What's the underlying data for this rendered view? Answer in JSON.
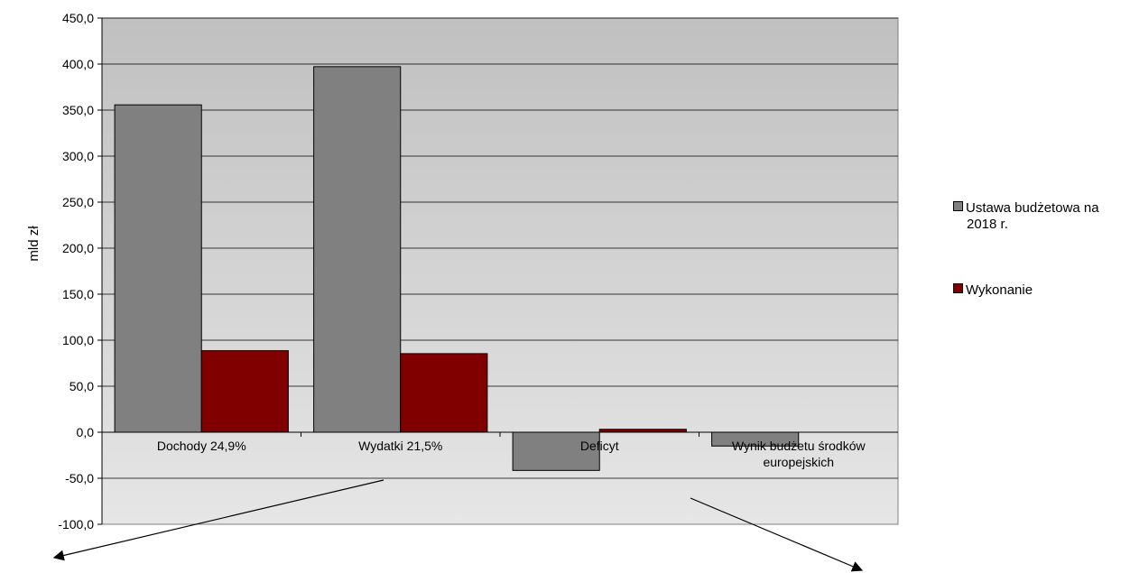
{
  "chart_data": {
    "type": "bar",
    "ylabel": "mld zł",
    "ylim": [
      -100,
      450
    ],
    "yticks": [
      450,
      400,
      350,
      300,
      250,
      200,
      150,
      100,
      50,
      0,
      -50,
      -100
    ],
    "ytick_labels": [
      "450,0",
      "400,0",
      "350,0",
      "300,0",
      "250,0",
      "200,0",
      "150,0",
      "100,0",
      "50,0",
      "0,0",
      "-50,0",
      "-100,0"
    ],
    "categories": [
      "Dochody 24,9%",
      "Wydatki 21,5%",
      "Deficyt",
      "Wynik budżetu środków europejskich"
    ],
    "category_label_lines": [
      [
        "Dochody 24,9%"
      ],
      [
        "Wydatki 21,5%"
      ],
      [
        "Deficyt"
      ],
      [
        "Wynik budżetu środków",
        "europejskich"
      ]
    ],
    "series": [
      {
        "name": "Ustawa budżetowa na 2018 r.",
        "name_lines": [
          "Ustawa budżetowa na",
          "2018 r."
        ],
        "color": "#808080",
        "values": [
          355.7,
          397.2,
          -41.5,
          -15.0
        ]
      },
      {
        "name": "Wykonanie",
        "name_lines": [
          "Wykonanie"
        ],
        "color": "#800000",
        "values": [
          88.6,
          85.4,
          3.2,
          null
        ]
      }
    ],
    "grid": true,
    "legend_position": "right",
    "plot_colors": {
      "background_top": "#c0c0c0",
      "background_bottom": "#e6e6e6",
      "grid": "#000000"
    }
  }
}
